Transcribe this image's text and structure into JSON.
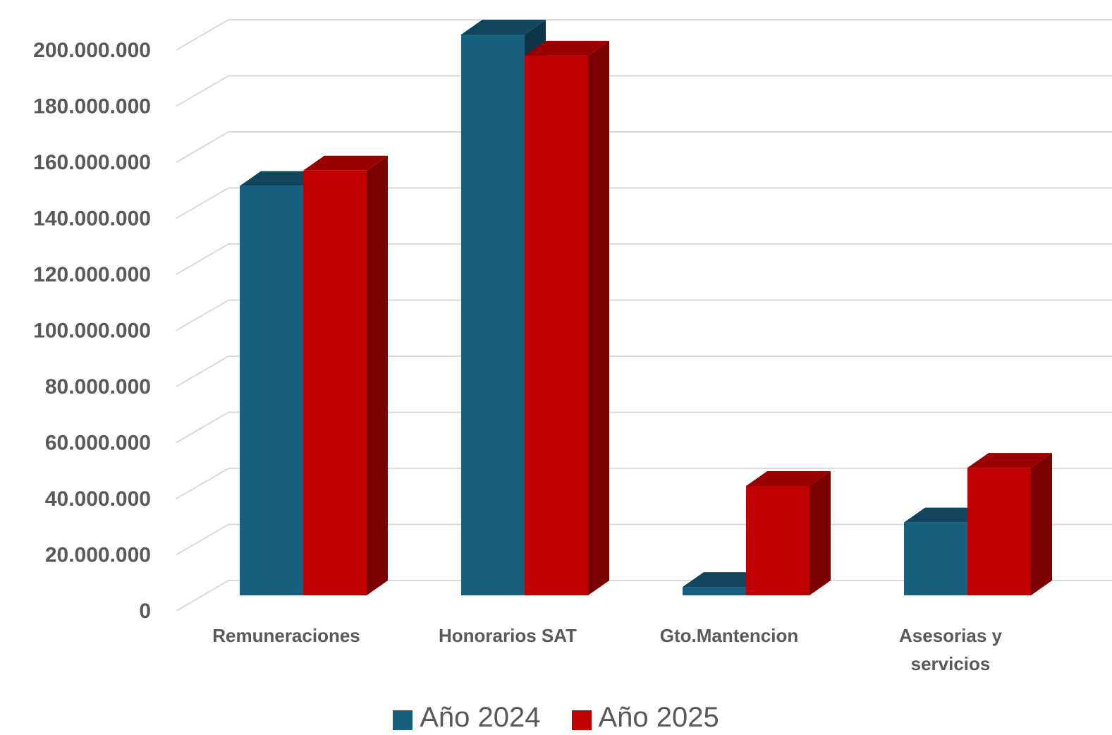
{
  "chart_data": {
    "type": "bar",
    "categories": [
      "Remuneraciones",
      "Honorarios SAT",
      "Gto.Mantencion",
      "Asesorias y servicios"
    ],
    "category_lines": [
      [
        "Remuneraciones"
      ],
      [
        "Honorarios SAT"
      ],
      [
        "Gto.Mantencion"
      ],
      [
        "Asesorias y",
        "servicios"
      ]
    ],
    "series": [
      {
        "name": "Año 2024",
        "values": [
          146000000,
          200000000,
          3000000,
          26000000
        ],
        "color": "#17607f"
      },
      {
        "name": "Año 2025",
        "values": [
          151500000,
          192500000,
          39000000,
          45500000
        ],
        "color": "#c00000"
      }
    ],
    "ylim": [
      0,
      210000000
    ],
    "yticks": [
      0,
      20000000,
      40000000,
      60000000,
      80000000,
      100000000,
      120000000,
      140000000,
      160000000,
      180000000,
      200000000
    ],
    "ytick_labels": [
      "0",
      "20.000.000",
      "40.000.000",
      "60.000.000",
      "80.000.000",
      "100.000.000",
      "120.000.000",
      "140.000.000",
      "160.000.000",
      "180.000.000",
      "200.000.000"
    ],
    "title": "",
    "xlabel": "",
    "ylabel": "",
    "grid": true,
    "legend_position": "bottom",
    "style": "3d-clustered-column"
  },
  "legend": {
    "items": [
      {
        "label": "Año 2024",
        "color": "#17607f"
      },
      {
        "label": "Año 2025",
        "color": "#c00000"
      }
    ]
  }
}
